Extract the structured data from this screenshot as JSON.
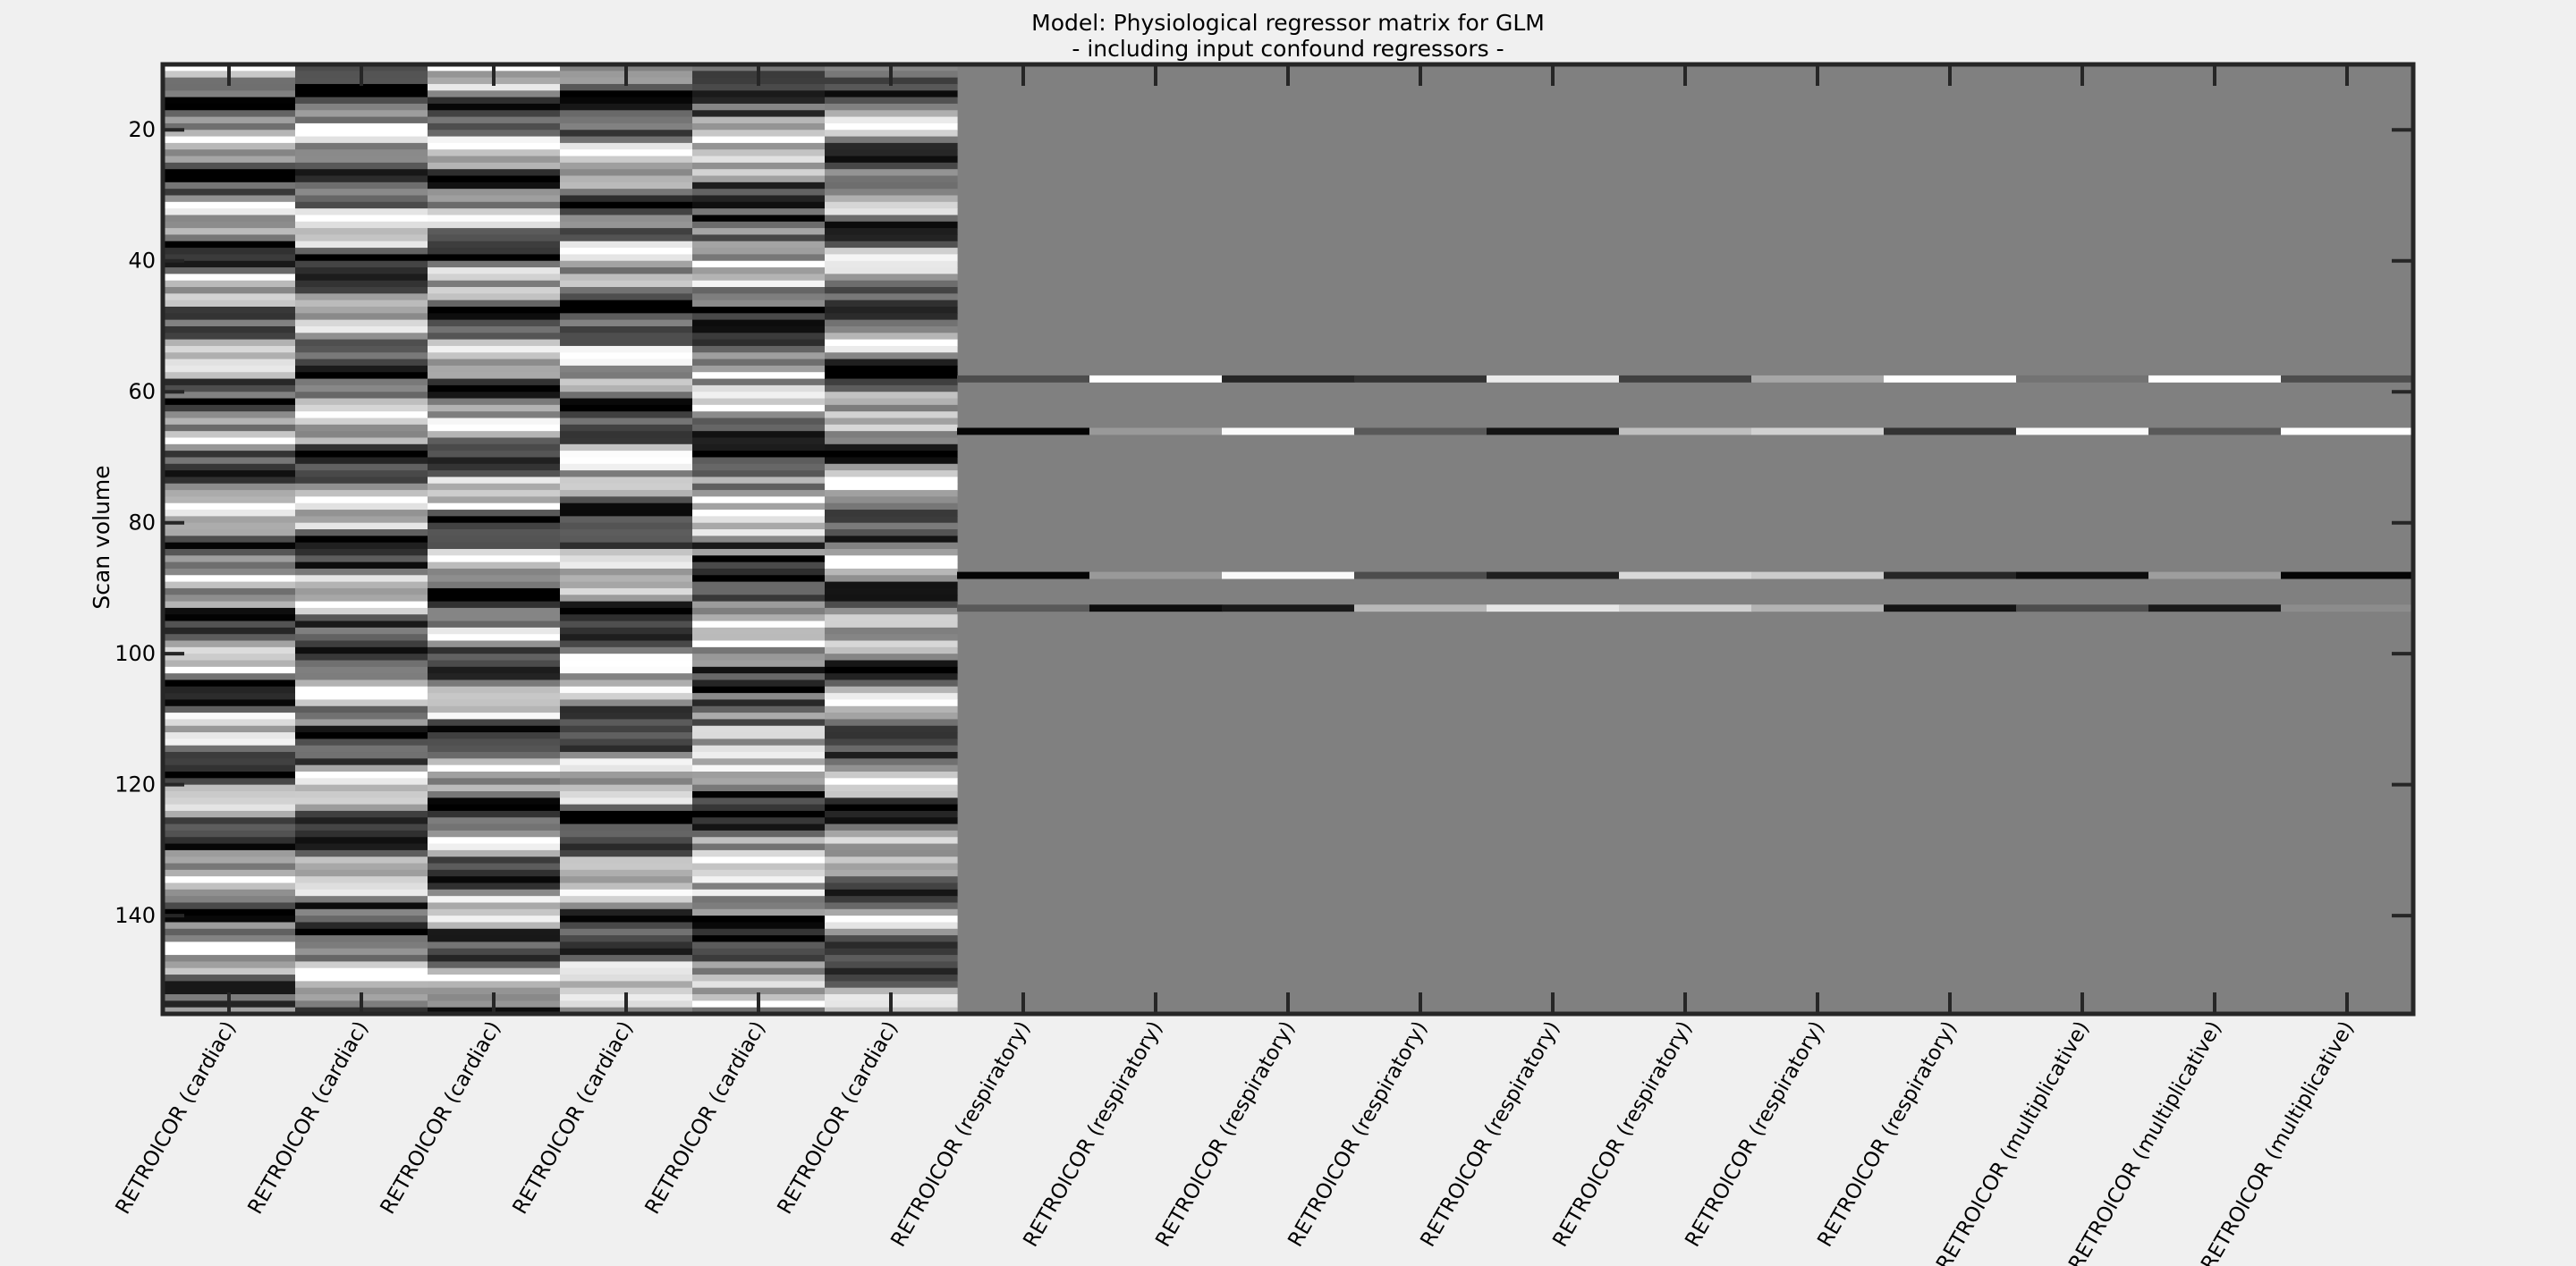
{
  "chart_data": {
    "type": "heatmap",
    "colormap": "gray",
    "title": "Model: Physiological regressor matrix for GLM",
    "subtitle": "- including input confound regressors -",
    "ylabel": "Scan volume",
    "xlabel": "",
    "ylim": [
      10,
      155
    ],
    "yticks": [
      20,
      40,
      60,
      80,
      100,
      120,
      140
    ],
    "n_rows": 145,
    "columns": [
      "RETROICOR (cardiac)",
      "RETROICOR (cardiac)",
      "RETROICOR (cardiac)",
      "RETROICOR (cardiac)",
      "RETROICOR (cardiac)",
      "RETROICOR (cardiac)",
      "RETROICOR (respiratory)",
      "RETROICOR (respiratory)",
      "RETROICOR (respiratory)",
      "RETROICOR (respiratory)",
      "RETROICOR (respiratory)",
      "RETROICOR (respiratory)",
      "RETROICOR (respiratory)",
      "RETROICOR (respiratory)",
      "RETROICOR (multiplicative)",
      "RETROICOR (multiplicative)",
      "RETROICOR (multiplicative)"
    ],
    "background_value": 0.5,
    "dense_columns": 6,
    "sparse_rows": [
      {
        "scan": 58,
        "values": [
          0.3,
          1.0,
          0.15,
          0.2,
          0.92,
          0.25,
          0.65,
          1.0,
          0.45,
          1.0,
          0.3
        ]
      },
      {
        "scan": 66,
        "values": [
          0.02,
          0.6,
          0.98,
          0.35,
          0.08,
          0.75,
          0.82,
          0.2,
          0.98,
          0.35,
          1.0
        ]
      },
      {
        "scan": 88,
        "values": [
          0.02,
          0.6,
          0.98,
          0.3,
          0.12,
          0.85,
          0.8,
          0.15,
          0.05,
          0.62,
          0.02
        ]
      },
      {
        "scan": 93,
        "values": [
          0.35,
          0.05,
          0.1,
          0.72,
          0.9,
          0.82,
          0.7,
          0.08,
          0.3,
          0.1,
          0.55
        ]
      }
    ],
    "seed": 1337,
    "grid": false
  }
}
